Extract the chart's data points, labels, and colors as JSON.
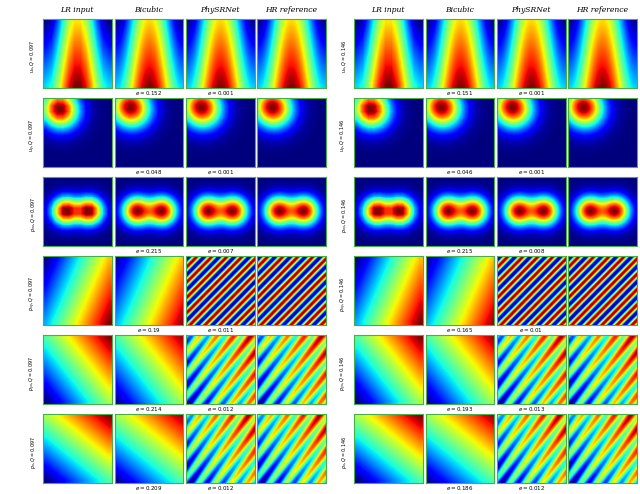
{
  "left_panel": {
    "col_headers": [
      "LR input",
      "Bicubic",
      "PhySRNet",
      "HR reference"
    ],
    "row_labels_var": [
      "u_x",
      "u_y",
      "p_{xx}",
      "p_{xy}",
      "p_{yx}",
      "p_x"
    ],
    "q_value": "Q=0.097",
    "errors_bicubic": [
      0.152,
      0.048,
      0.215,
      0.19,
      0.214,
      0.209
    ],
    "errors_physrnet": [
      0.001,
      0.001,
      0.007,
      0.011,
      0.012,
      0.012
    ]
  },
  "right_panel": {
    "col_headers": [
      "LR input",
      "Bicubic",
      "PhySRNet",
      "HR reference"
    ],
    "row_labels_var": [
      "u_x",
      "u_y",
      "p_{xx}",
      "p_{xy}",
      "p_{yx}",
      "p_x"
    ],
    "q_value": "Q=0.146",
    "errors_bicubic": [
      0.151,
      0.046,
      0.215,
      0.165,
      0.193,
      0.186
    ],
    "errors_physrnet": [
      0.001,
      0.001,
      0.008,
      0.01,
      0.013,
      0.012
    ]
  },
  "n_rows": 6,
  "n_cols": 4,
  "border_color": "#4aaf4a"
}
